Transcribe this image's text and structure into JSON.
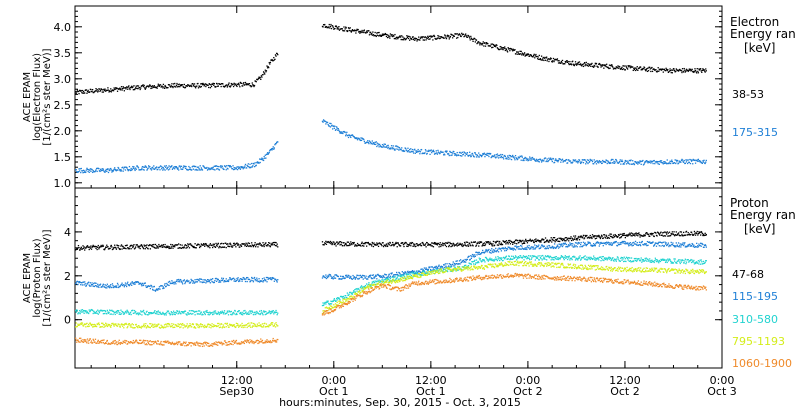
{
  "chart_data": [
    {
      "type": "scatter",
      "ylabel_lines": [
        "ACE EPAM",
        "log(Electron Flux)",
        "[1/(cm²s ster MeV)]"
      ],
      "legend_title_lines": [
        "Electron",
        "Energy ran",
        "[keV]"
      ],
      "ylim": [
        0.9,
        4.4
      ],
      "yticks": [
        "1.0",
        "1.5",
        "2.0",
        "2.5",
        "3.0",
        "3.5",
        "4.0"
      ],
      "ytick_values": [
        1.0,
        1.5,
        2.0,
        2.5,
        3.0,
        3.5,
        4.0
      ],
      "x_unit": "hours since Sep 30 00:00",
      "xlim": [
        -8,
        72
      ],
      "data_gap": [
        17,
        22.5
      ],
      "series": [
        {
          "name": "38-53",
          "color": "#000000",
          "points": [
            [
              -8,
              2.75
            ],
            [
              -4,
              2.8
            ],
            [
              0,
              2.85
            ],
            [
              4,
              2.88
            ],
            [
              8,
              2.88
            ],
            [
              12,
              2.9
            ],
            [
              14,
              2.9
            ],
            [
              15,
              3.05
            ],
            [
              16,
              3.3
            ],
            [
              17,
              3.5
            ],
            [
              22.5,
              4.05
            ],
            [
              26,
              3.95
            ],
            [
              30,
              3.85
            ],
            [
              34,
              3.78
            ],
            [
              38,
              3.82
            ],
            [
              40,
              3.85
            ],
            [
              42,
              3.7
            ],
            [
              46,
              3.55
            ],
            [
              50,
              3.4
            ],
            [
              54,
              3.3
            ],
            [
              58,
              3.25
            ],
            [
              62,
              3.2
            ],
            [
              66,
              3.17
            ],
            [
              70,
              3.17
            ]
          ]
        },
        {
          "name": "175-315",
          "color": "#1e7fd6",
          "points": [
            [
              -8,
              1.25
            ],
            [
              -4,
              1.25
            ],
            [
              0,
              1.3
            ],
            [
              4,
              1.3
            ],
            [
              8,
              1.3
            ],
            [
              12,
              1.3
            ],
            [
              14,
              1.35
            ],
            [
              15,
              1.45
            ],
            [
              16,
              1.6
            ],
            [
              17,
              1.8
            ],
            [
              22.5,
              2.2
            ],
            [
              26,
              1.9
            ],
            [
              30,
              1.72
            ],
            [
              34,
              1.62
            ],
            [
              38,
              1.58
            ],
            [
              42,
              1.55
            ],
            [
              46,
              1.5
            ],
            [
              50,
              1.45
            ],
            [
              54,
              1.42
            ],
            [
              58,
              1.42
            ],
            [
              62,
              1.4
            ],
            [
              66,
              1.42
            ],
            [
              70,
              1.42
            ]
          ]
        }
      ]
    },
    {
      "type": "scatter",
      "ylabel_lines": [
        "ACE EPAM",
        "log(Proton Flux)",
        "[1/(cm²s ster MeV)]"
      ],
      "legend_title_lines": [
        "Proton",
        "Energy ran",
        "[keV]"
      ],
      "ylim": [
        -2.2,
        6
      ],
      "yticks": [
        "0",
        "2",
        "4"
      ],
      "ytick_values": [
        0,
        2,
        4
      ],
      "x_unit": "hours since Sep 30 00:00",
      "xlim": [
        -8,
        72
      ],
      "data_gap": [
        17,
        22.5
      ],
      "series": [
        {
          "name": "47-68",
          "color": "#000000",
          "points": [
            [
              -8,
              3.3
            ],
            [
              0,
              3.35
            ],
            [
              8,
              3.4
            ],
            [
              17,
              3.45
            ],
            [
              22.5,
              3.5
            ],
            [
              30,
              3.45
            ],
            [
              38,
              3.45
            ],
            [
              44,
              3.5
            ],
            [
              50,
              3.65
            ],
            [
              56,
              3.8
            ],
            [
              62,
              3.9
            ],
            [
              66,
              3.95
            ],
            [
              70,
              3.95
            ]
          ]
        },
        {
          "name": "115-195",
          "color": "#1e7fd6",
          "points": [
            [
              -8,
              1.7
            ],
            [
              -4,
              1.55
            ],
            [
              0,
              1.7
            ],
            [
              2,
              1.4
            ],
            [
              4,
              1.75
            ],
            [
              8,
              1.8
            ],
            [
              12,
              1.85
            ],
            [
              17,
              1.85
            ],
            [
              22.5,
              2.0
            ],
            [
              26,
              1.95
            ],
            [
              30,
              2.0
            ],
            [
              34,
              2.2
            ],
            [
              38,
              2.5
            ],
            [
              40,
              2.7
            ],
            [
              42,
              3.1
            ],
            [
              46,
              3.3
            ],
            [
              50,
              3.35
            ],
            [
              54,
              3.45
            ],
            [
              58,
              3.5
            ],
            [
              62,
              3.5
            ],
            [
              66,
              3.45
            ],
            [
              70,
              3.4
            ]
          ]
        },
        {
          "name": "310-580",
          "color": "#22d3d0",
          "points": [
            [
              -8,
              0.4
            ],
            [
              0,
              0.35
            ],
            [
              8,
              0.35
            ],
            [
              17,
              0.35
            ],
            [
              22.5,
              0.7
            ],
            [
              24,
              0.9
            ],
            [
              26,
              1.2
            ],
            [
              28,
              1.6
            ],
            [
              30,
              1.8
            ],
            [
              34,
              2.1
            ],
            [
              38,
              2.3
            ],
            [
              40,
              2.4
            ],
            [
              42,
              2.75
            ],
            [
              46,
              2.85
            ],
            [
              50,
              2.85
            ],
            [
              54,
              2.85
            ],
            [
              58,
              2.8
            ],
            [
              62,
              2.75
            ],
            [
              66,
              2.7
            ],
            [
              70,
              2.65
            ]
          ]
        },
        {
          "name": "795-1193",
          "color": "#d4ed1a",
          "points": [
            [
              -8,
              -0.2
            ],
            [
              0,
              -0.25
            ],
            [
              8,
              -0.25
            ],
            [
              17,
              -0.2
            ],
            [
              22.5,
              0.4
            ],
            [
              24,
              0.7
            ],
            [
              26,
              1.0
            ],
            [
              28,
              1.5
            ],
            [
              30,
              1.7
            ],
            [
              34,
              2.0
            ],
            [
              38,
              2.3
            ],
            [
              42,
              2.4
            ],
            [
              46,
              2.6
            ],
            [
              50,
              2.55
            ],
            [
              54,
              2.45
            ],
            [
              58,
              2.35
            ],
            [
              62,
              2.3
            ],
            [
              66,
              2.25
            ],
            [
              70,
              2.2
            ]
          ]
        },
        {
          "name": "1060-1900",
          "color": "#ef8a2a",
          "points": [
            [
              -8,
              -0.9
            ],
            [
              -4,
              -1.0
            ],
            [
              0,
              -1.0
            ],
            [
              4,
              -1.05
            ],
            [
              8,
              -1.1
            ],
            [
              12,
              -1.0
            ],
            [
              17,
              -0.9
            ],
            [
              22.5,
              0.3
            ],
            [
              24,
              0.5
            ],
            [
              26,
              0.9
            ],
            [
              28,
              1.3
            ],
            [
              30,
              1.6
            ],
            [
              32,
              1.4
            ],
            [
              34,
              1.7
            ],
            [
              38,
              1.8
            ],
            [
              42,
              1.95
            ],
            [
              46,
              2.05
            ],
            [
              50,
              1.95
            ],
            [
              54,
              1.9
            ],
            [
              58,
              1.8
            ],
            [
              62,
              1.7
            ],
            [
              66,
              1.55
            ],
            [
              70,
              1.45
            ]
          ]
        }
      ]
    }
  ],
  "x_axis": {
    "tick_hours": [
      12,
      24,
      36,
      48,
      60,
      72
    ],
    "tick_time_labels": [
      "12:00",
      "0:00",
      "12:00",
      "0:00",
      "12:00",
      "0:00"
    ],
    "tick_date_labels": [
      "Sep30",
      "Oct 1",
      "Oct 1",
      "Oct 2",
      "Oct 2",
      "Oct 3"
    ],
    "title": "hours:minutes, Sep. 30, 2015 - Oct. 3, 2015"
  }
}
